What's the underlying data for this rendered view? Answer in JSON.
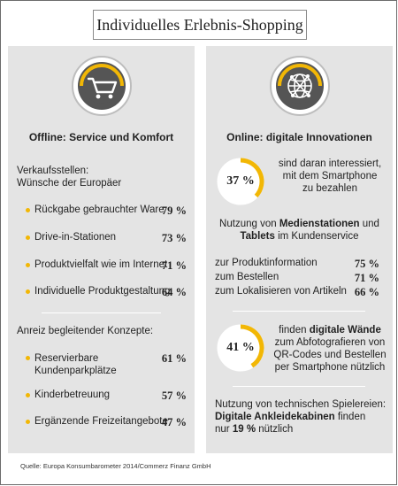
{
  "title": "Individuelles Erlebnis-Shopping",
  "left": {
    "icon": "shopping-cart-icon",
    "heading": "Offline: Service und Komfort",
    "section1_title_line1": "Verkaufsstellen:",
    "section1_title_line2": "Wünsche der Europäer",
    "section1_items": [
      {
        "label": "Rückgabe gebrauchter Ware",
        "value": "79 %"
      },
      {
        "label": "Drive-in-Stationen",
        "value": "73 %"
      },
      {
        "label": "Produktvielfalt wie im Internet",
        "value": "71 %"
      },
      {
        "label": "Individuelle Produktgestaltung",
        "value": "64 %"
      }
    ],
    "section2_title": "Anreiz begleitender Konzepte:",
    "section2_items": [
      {
        "label_line1": "Reservierbare",
        "label_line2": "Kundenparkplätze",
        "value": "61 %"
      },
      {
        "label_line1": "Kinderbetreuung",
        "label_line2": "",
        "value": "57 %"
      },
      {
        "label_line1": "Ergänzende Freizeitangebote",
        "label_line2": "",
        "value": "47 %"
      }
    ]
  },
  "right": {
    "icon": "globe-network-icon",
    "heading": "Online: digitale Innovationen",
    "stat1": {
      "value": "37 %",
      "fraction": 0.37,
      "line1": "sind daran interessiert,",
      "line2": "mit dem Smartphone",
      "line3": "zu bezahlen"
    },
    "media": {
      "line1_prefix": "Nutzung von ",
      "line1_bold": "Medienstationen",
      "line1_suffix": " und",
      "line2_bold": "Tablets",
      "line2_suffix": " im Kundenservice",
      "items": [
        {
          "label": "zur Produktinformation",
          "value": "75 %"
        },
        {
          "label": "zum Bestellen",
          "value": "71 %"
        },
        {
          "label": "zum Lokalisieren von Artikeln",
          "value": "66 %"
        }
      ]
    },
    "stat2": {
      "value": "41 %",
      "fraction": 0.41,
      "line1_prefix": "finden ",
      "line1_bold": "digitale Wände",
      "line2": "zum Abfotografieren von",
      "line3": "QR-Codes und Bestellen",
      "line4": "per Smartphone nützlich"
    },
    "gadgets": {
      "line1": "Nutzung von technischen Spielereien:",
      "line2_bold": "Digitale Ankleidekabinen",
      "line2_suffix": " finden",
      "line3_prefix": "nur ",
      "line3_bold": "19 %",
      "line3_suffix": " nützlich"
    }
  },
  "source": "Quelle: Europa Konsumbarometer 2014/Commerz Finanz GmbH",
  "colors": {
    "accent": "#f2b705",
    "panel": "#e4e4e4",
    "icon_dark": "#555555"
  }
}
